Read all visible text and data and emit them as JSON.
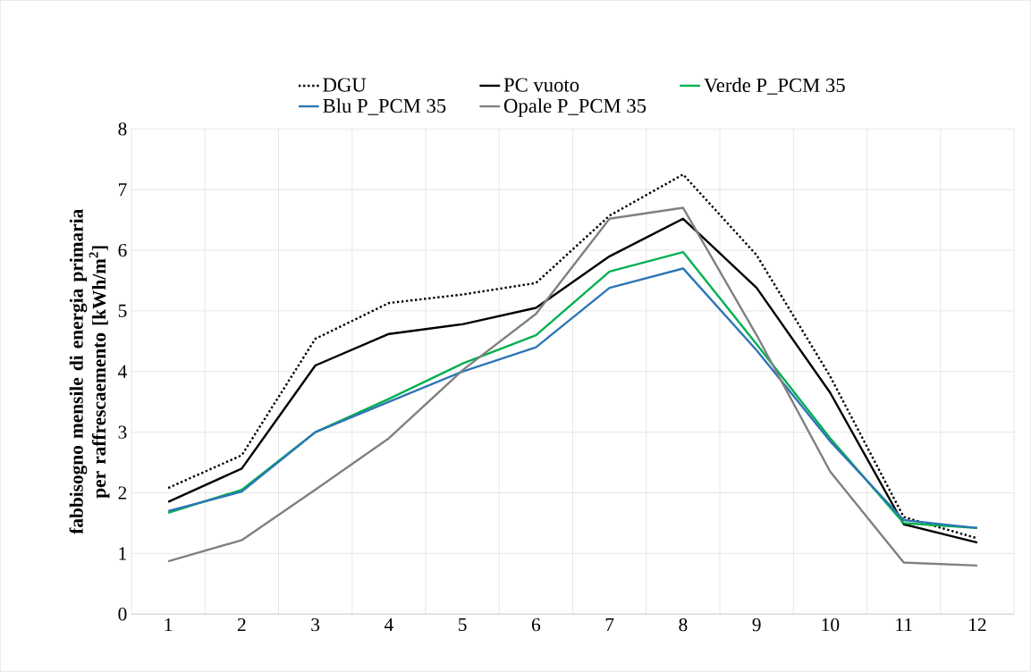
{
  "chart_data": {
    "type": "line",
    "ylabel": "fabbisogno mensile di energia primaria per raffrescaemento [kWh/m$^{2}$]",
    "categories": [
      "1",
      "2",
      "3",
      "4",
      "5",
      "6",
      "7",
      "8",
      "9",
      "10",
      "11",
      "12"
    ],
    "series": [
      {
        "name": "DGU",
        "color": "#000000",
        "line_style": "dotted",
        "values": [
          2.08,
          2.62,
          4.54,
          5.13,
          5.27,
          5.46,
          6.57,
          7.25,
          5.92,
          3.92,
          1.6,
          1.25
        ]
      },
      {
        "name": "PC vuoto",
        "color": "#000000",
        "values": [
          1.85,
          2.4,
          4.1,
          4.62,
          4.78,
          5.05,
          5.9,
          6.52,
          5.38,
          3.65,
          1.48,
          1.18
        ]
      },
      {
        "name": "Verde P_PCM 35",
        "color": "#00b050",
        "values": [
          1.67,
          2.05,
          3.0,
          3.55,
          4.13,
          4.6,
          5.65,
          5.97,
          4.45,
          2.9,
          1.5,
          1.42
        ]
      },
      {
        "name": "Blu P_PCM 35",
        "color": "#2e75b6",
        "values": [
          1.7,
          2.02,
          3.0,
          3.5,
          4.0,
          4.4,
          5.38,
          5.7,
          4.35,
          2.85,
          1.55,
          1.42
        ]
      },
      {
        "name": "Opale P_PCM 35",
        "color": "#808080",
        "values": [
          0.87,
          1.22,
          2.05,
          2.9,
          4.02,
          4.95,
          6.52,
          6.7,
          4.6,
          2.35,
          0.85,
          0.8
        ]
      }
    ],
    "ylim": [
      0,
      8
    ],
    "yticks": [
      0,
      1,
      2,
      3,
      4,
      5,
      6,
      7,
      8
    ],
    "grid": true,
    "legend": "top",
    "marker": "none"
  }
}
